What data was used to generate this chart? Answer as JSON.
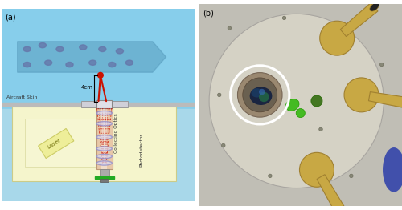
{
  "fig_width": 5.0,
  "fig_height": 2.62,
  "dpi": 100,
  "panel_a_label": "(a)",
  "panel_b_label": "(b)",
  "bg_sky": "#87CEEB",
  "bg_sky2": "#A8D8EA",
  "arrow_color": "#5599BB",
  "arrow_alpha": 0.5,
  "aircraft_skin_label": "Aircraft Skin",
  "laser_label": "Laser",
  "collecting_optics_label": "Collecting Optics",
  "photodetector_label": "Photodetector",
  "dimension_label": "4cm",
  "droplet_color": "#6677AA",
  "laser_box_color": "#EEEE99",
  "laser_box_edge": "#CCCC66",
  "tube_color": "#E8C8A8",
  "red_beam": "#CC1100",
  "lens_color": "#8888CC",
  "window_gray": "#D0D0D8",
  "skin_gray": "#BBBBBB",
  "green_bar": "#22AA22",
  "white_circle": "#FFFFFF",
  "box_bg": "#F5F5CC",
  "photo_bg": "#C0BEB5",
  "mount_plate": "#D5D2C5",
  "brass_color": "#C8A844",
  "brass_edge": "#A08030",
  "bcp_outer": "#9A8870",
  "bcp_glass": "#1A2540",
  "bcp_glass2": "#2A3A60",
  "green_blob": "#44BB22",
  "blue_dot": "#3344BB"
}
